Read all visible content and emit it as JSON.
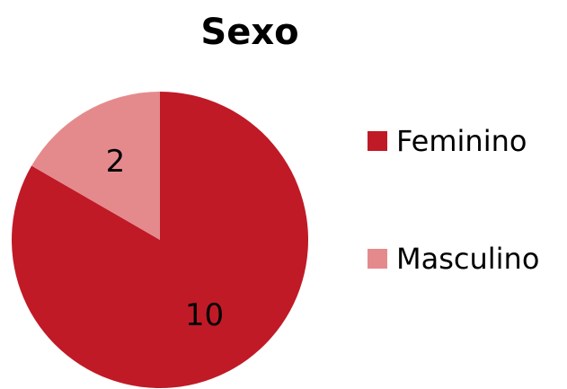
{
  "chart_data": {
    "type": "pie",
    "title": "Sexo",
    "categories": [
      "Feminino",
      "Masculino"
    ],
    "values": [
      10,
      2
    ],
    "colors": [
      "#c01a27",
      "#e58a8c"
    ],
    "legend": "right"
  }
}
